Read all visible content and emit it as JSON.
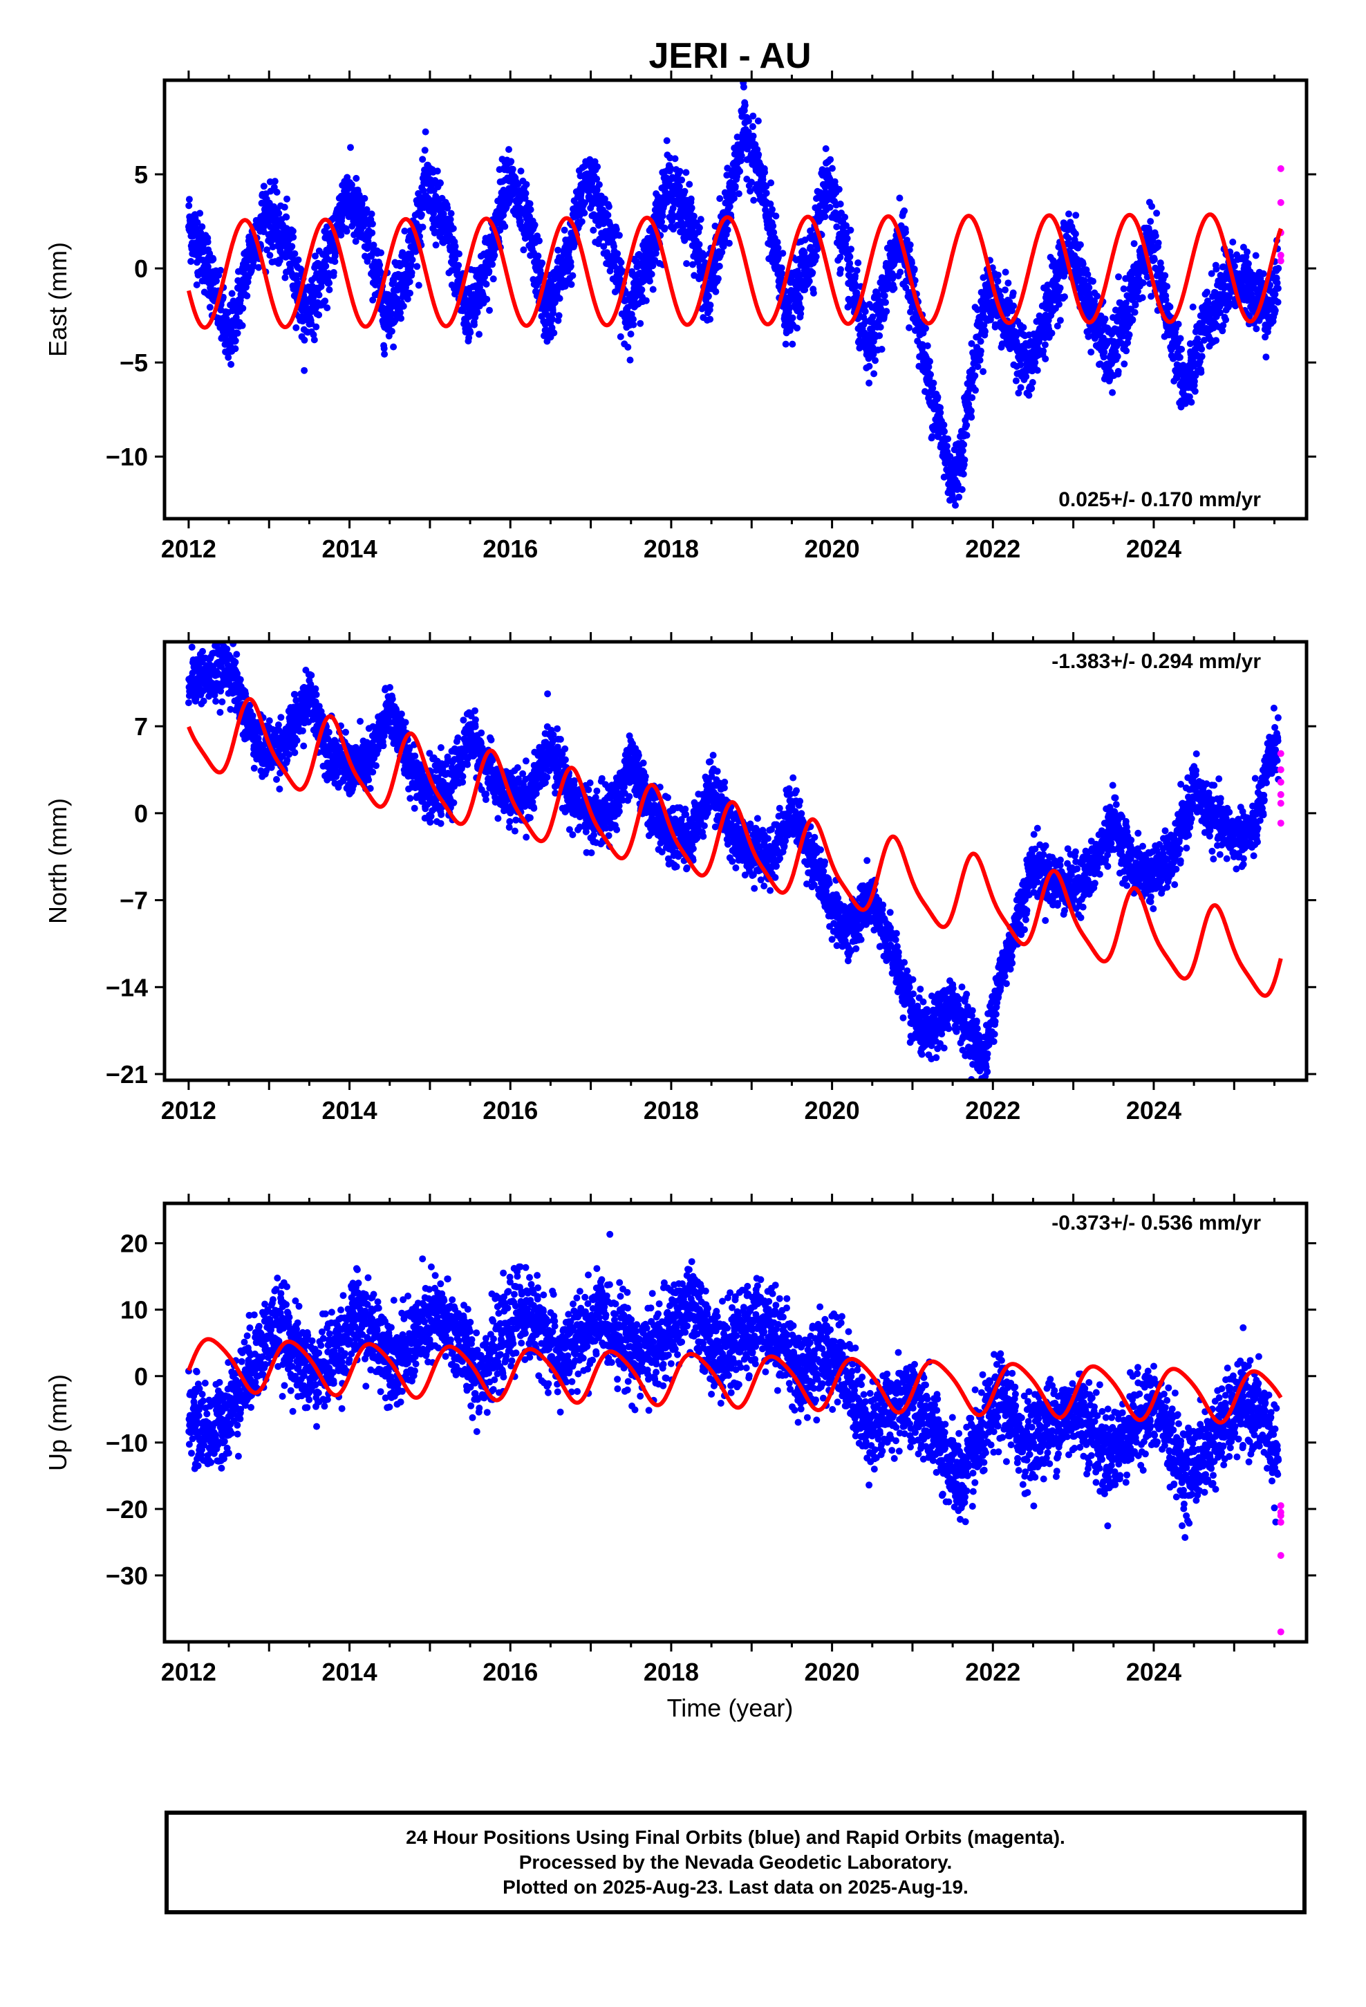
{
  "title": "JERI - AU",
  "xlabel": "Time (year)",
  "colors": {
    "final": "#0000ff",
    "rapid": "#ff00ff",
    "model": "#ff0000",
    "frame": "#000000"
  },
  "caption": [
    "24 Hour Positions Using Final Orbits (blue) and Rapid Orbits (magenta).",
    "Processed by the Nevada Geodetic Laboratory.",
    "Plotted on 2025-Aug-23. Last data on 2025-Aug-19."
  ],
  "chart_data": [
    {
      "type": "scatter",
      "panel": "east",
      "ylabel": "East (mm)",
      "rate_text": "0.025+/- 0.170 mm/yr",
      "rate_position": "bottom-right",
      "xlim": [
        2011.7,
        2025.9
      ],
      "ylim": [
        -13.3,
        10
      ],
      "xticks": [
        2012,
        2014,
        2016,
        2018,
        2020,
        2022,
        2024
      ],
      "yticks": [
        5,
        0,
        -5,
        -10
      ],
      "ytick_labels": [
        "5",
        "0",
        "−5",
        "−10"
      ],
      "scatter_noise": 0.9,
      "trend_points": [
        [
          2012.0,
          2.5
        ],
        [
          2012.25,
          0.0
        ],
        [
          2012.45,
          -3.2
        ],
        [
          2012.5,
          -4.0
        ],
        [
          2012.75,
          0.5
        ],
        [
          2012.95,
          3.0
        ],
        [
          2013.25,
          1.0
        ],
        [
          2013.45,
          -2.6
        ],
        [
          2013.75,
          0.5
        ],
        [
          2013.95,
          4.0
        ],
        [
          2014.25,
          1.5
        ],
        [
          2014.45,
          -2.6
        ],
        [
          2014.75,
          0.5
        ],
        [
          2014.95,
          4.5
        ],
        [
          2015.25,
          1.5
        ],
        [
          2015.45,
          -2.6
        ],
        [
          2015.75,
          0.5
        ],
        [
          2015.95,
          5.0
        ],
        [
          2016.25,
          1.8
        ],
        [
          2016.45,
          -2.5
        ],
        [
          2016.75,
          1.0
        ],
        [
          2016.95,
          5.0
        ],
        [
          2017.25,
          1.5
        ],
        [
          2017.45,
          -2.5
        ],
        [
          2017.75,
          1.0
        ],
        [
          2017.95,
          4.5
        ],
        [
          2018.25,
          2.5
        ],
        [
          2018.45,
          -1.5
        ],
        [
          2018.7,
          3.0
        ],
        [
          2018.9,
          7.5
        ],
        [
          2019.1,
          5.0
        ],
        [
          2019.3,
          0.5
        ],
        [
          2019.45,
          -2.5
        ],
        [
          2019.75,
          1.0
        ],
        [
          2019.95,
          5.0
        ],
        [
          2020.2,
          0.0
        ],
        [
          2020.45,
          -4.5
        ],
        [
          2020.65,
          -1.5
        ],
        [
          2020.85,
          2.0
        ],
        [
          2021.0,
          -1.0
        ],
        [
          2021.2,
          -6.0
        ],
        [
          2021.4,
          -9.5
        ],
        [
          2021.5,
          -11.5
        ],
        [
          2021.6,
          -10.0
        ],
        [
          2021.8,
          -4.0
        ],
        [
          2021.95,
          -1.0
        ],
        [
          2022.2,
          -3.0
        ],
        [
          2022.45,
          -5.5
        ],
        [
          2022.7,
          -2.0
        ],
        [
          2022.95,
          1.5
        ],
        [
          2023.2,
          -2.0
        ],
        [
          2023.45,
          -5.0
        ],
        [
          2023.7,
          -2.0
        ],
        [
          2023.95,
          1.5
        ],
        [
          2024.2,
          -3.0
        ],
        [
          2024.4,
          -6.5
        ],
        [
          2024.65,
          -3.0
        ],
        [
          2024.95,
          -0.5
        ],
        [
          2025.2,
          -1.0
        ],
        [
          2025.45,
          -2.2
        ],
        [
          2025.55,
          -0.5
        ]
      ],
      "model": {
        "offset": -0.15,
        "slope": 0.025,
        "ref_year": 2018.0,
        "annual_amp": 2.85,
        "annual_phase_year": 2012.45,
        "semiannual_amp": 0.0,
        "semiannual_phase_year": 2012.0,
        "steps": []
      },
      "rapid": {
        "x": [
          2025.58,
          2025.58,
          2025.58,
          2025.58,
          2025.58
        ],
        "y": [
          5.3,
          3.5,
          1.9,
          0.7,
          0.4
        ]
      }
    },
    {
      "type": "scatter",
      "panel": "north",
      "ylabel": "North (mm)",
      "rate_text": "-1.383+/- 0.294 mm/yr",
      "rate_position": "top-right",
      "xlim": [
        2011.7,
        2025.9
      ],
      "ylim": [
        -21.5,
        13.8
      ],
      "xticks": [
        2012,
        2014,
        2016,
        2018,
        2020,
        2022,
        2024
      ],
      "yticks": [
        7,
        0,
        -7,
        -14,
        -21
      ],
      "ytick_labels": [
        "7",
        "0",
        "−7",
        "−14",
        "−21"
      ],
      "scatter_noise": 1.1,
      "trend_points": [
        [
          2012.0,
          11.0
        ],
        [
          2012.3,
          11.0
        ],
        [
          2012.5,
          12.0
        ],
        [
          2012.7,
          8.0
        ],
        [
          2012.9,
          5.0
        ],
        [
          2013.2,
          5.5
        ],
        [
          2013.5,
          9.5
        ],
        [
          2013.75,
          5.0
        ],
        [
          2014.0,
          3.5
        ],
        [
          2014.25,
          4.0
        ],
        [
          2014.5,
          8.5
        ],
        [
          2014.75,
          4.0
        ],
        [
          2015.0,
          1.5
        ],
        [
          2015.25,
          2.0
        ],
        [
          2015.5,
          6.5
        ],
        [
          2015.75,
          3.0
        ],
        [
          2016.0,
          1.0
        ],
        [
          2016.25,
          1.5
        ],
        [
          2016.5,
          5.5
        ],
        [
          2016.75,
          1.5
        ],
        [
          2017.0,
          -0.5
        ],
        [
          2017.25,
          0.0
        ],
        [
          2017.5,
          4.0
        ],
        [
          2017.75,
          0.5
        ],
        [
          2018.0,
          -2.0
        ],
        [
          2018.25,
          -2.0
        ],
        [
          2018.5,
          2.5
        ],
        [
          2018.75,
          -1.5
        ],
        [
          2019.0,
          -3.0
        ],
        [
          2019.25,
          -3.5
        ],
        [
          2019.5,
          0.5
        ],
        [
          2019.75,
          -3.5
        ],
        [
          2020.0,
          -7.5
        ],
        [
          2020.2,
          -9.5
        ],
        [
          2020.45,
          -7.0
        ],
        [
          2020.6,
          -8.5
        ],
        [
          2020.8,
          -12.0
        ],
        [
          2021.0,
          -16.5
        ],
        [
          2021.2,
          -18.0
        ],
        [
          2021.4,
          -16.0
        ],
        [
          2021.55,
          -15.5
        ],
        [
          2021.75,
          -18.0
        ],
        [
          2021.9,
          -20.0
        ],
        [
          2022.05,
          -14.0
        ],
        [
          2022.25,
          -10.0
        ],
        [
          2022.5,
          -4.0
        ],
        [
          2022.75,
          -5.5
        ],
        [
          2023.0,
          -6.0
        ],
        [
          2023.25,
          -4.5
        ],
        [
          2023.5,
          -0.5
        ],
        [
          2023.75,
          -4.5
        ],
        [
          2024.0,
          -5.0
        ],
        [
          2024.25,
          -3.5
        ],
        [
          2024.5,
          2.0
        ],
        [
          2024.75,
          -0.5
        ],
        [
          2025.0,
          -2.0
        ],
        [
          2025.25,
          -1.5
        ],
        [
          2025.5,
          6.0
        ],
        [
          2025.55,
          5.0
        ]
      ],
      "model": {
        "offset": -1.6,
        "slope": -1.383,
        "ref_year": 2018.0,
        "annual_amp": 3.0,
        "annual_phase_year": 2012.55,
        "semiannual_amp": 0.7,
        "semiannual_phase_year": 2012.1,
        "steps": []
      },
      "rapid": {
        "x": [
          2025.58,
          2025.58,
          2025.58,
          2025.58,
          2025.58,
          2025.58
        ],
        "y": [
          4.8,
          3.5,
          2.5,
          1.5,
          0.8,
          -0.8
        ]
      }
    },
    {
      "type": "scatter",
      "panel": "up",
      "ylabel": "Up (mm)",
      "rate_text": "-0.373+/- 0.536 mm/yr",
      "rate_position": "top-right",
      "xlim": [
        2011.7,
        2025.9
      ],
      "ylim": [
        -40,
        26
      ],
      "xticks": [
        2012,
        2014,
        2016,
        2018,
        2020,
        2022,
        2024
      ],
      "yticks": [
        20,
        10,
        0,
        -10,
        -20,
        -30
      ],
      "ytick_labels": [
        "20",
        "10",
        "0",
        "−10",
        "−20",
        "−30"
      ],
      "scatter_noise": 3.2,
      "trend_points": [
        [
          2012.0,
          -6.0
        ],
        [
          2012.3,
          -9.0
        ],
        [
          2012.5,
          -5.0
        ],
        [
          2012.8,
          2.0
        ],
        [
          2013.1,
          8.0
        ],
        [
          2013.4,
          2.0
        ],
        [
          2013.6,
          0.0
        ],
        [
          2013.9,
          5.0
        ],
        [
          2014.1,
          9.0
        ],
        [
          2014.4,
          5.0
        ],
        [
          2014.6,
          2.0
        ],
        [
          2014.9,
          7.0
        ],
        [
          2015.1,
          9.0
        ],
        [
          2015.4,
          5.0
        ],
        [
          2015.6,
          0.0
        ],
        [
          2015.9,
          5.0
        ],
        [
          2016.1,
          10.0
        ],
        [
          2016.4,
          7.0
        ],
        [
          2016.6,
          2.0
        ],
        [
          2016.9,
          6.0
        ],
        [
          2017.1,
          9.0
        ],
        [
          2017.4,
          6.0
        ],
        [
          2017.6,
          3.0
        ],
        [
          2017.9,
          5.0
        ],
        [
          2018.2,
          11.0
        ],
        [
          2018.4,
          7.0
        ],
        [
          2018.6,
          3.0
        ],
        [
          2018.9,
          6.0
        ],
        [
          2019.1,
          9.0
        ],
        [
          2019.4,
          5.0
        ],
        [
          2019.6,
          0.0
        ],
        [
          2019.9,
          3.0
        ],
        [
          2020.1,
          3.0
        ],
        [
          2020.4,
          -7.0
        ],
        [
          2020.6,
          -7.0
        ],
        [
          2020.9,
          -3.0
        ],
        [
          2021.1,
          -5.0
        ],
        [
          2021.4,
          -12.0
        ],
        [
          2021.6,
          -16.0
        ],
        [
          2021.9,
          -8.0
        ],
        [
          2022.1,
          -3.0
        ],
        [
          2022.4,
          -10.0
        ],
        [
          2022.6,
          -8.0
        ],
        [
          2022.9,
          -6.0
        ],
        [
          2023.1,
          -5.0
        ],
        [
          2023.4,
          -12.0
        ],
        [
          2023.6,
          -10.0
        ],
        [
          2023.9,
          -5.0
        ],
        [
          2024.1,
          -6.0
        ],
        [
          2024.4,
          -15.0
        ],
        [
          2024.6,
          -12.0
        ],
        [
          2024.9,
          -7.0
        ],
        [
          2025.1,
          -4.0
        ],
        [
          2025.4,
          -7.0
        ],
        [
          2025.55,
          -14.0
        ]
      ],
      "model": {
        "offset": -0.2,
        "slope": -0.373,
        "ref_year": 2018.0,
        "annual_amp": 3.8,
        "annual_phase_year": 2013.05,
        "semiannual_amp": 0.6,
        "semiannual_phase_year": 2012.0,
        "steps": []
      },
      "rapid": {
        "x": [
          2025.58,
          2025.58,
          2025.58,
          2025.58,
          2025.58,
          2025.58
        ],
        "y": [
          -19.5,
          -20.5,
          -21.0,
          -22.0,
          -27.0,
          -38.5
        ]
      }
    }
  ]
}
